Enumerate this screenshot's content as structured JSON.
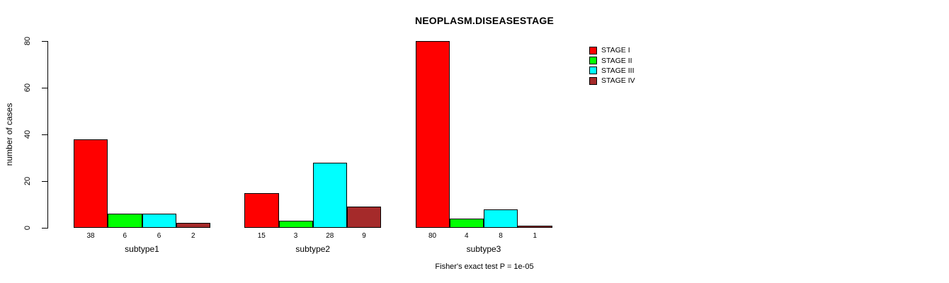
{
  "figure": {
    "background": "#FFFFFF",
    "text_color": "#000000"
  },
  "chart_data": {
    "type": "bar",
    "title": "NEOPLASM.DISEASESTAGE",
    "ylabel": "number of cases",
    "xlabel": "",
    "categories": [
      "subtype1",
      "subtype2",
      "subtype3"
    ],
    "series": [
      {
        "name": "STAGE I",
        "color": "#FF0000",
        "values": [
          38,
          15,
          80
        ]
      },
      {
        "name": "STAGE II",
        "color": "#00FF00",
        "values": [
          6,
          3,
          4
        ]
      },
      {
        "name": "STAGE III",
        "color": "#00FFFF",
        "values": [
          6,
          28,
          8
        ]
      },
      {
        "name": "STAGE IV",
        "color": "#A52A2A",
        "values": [
          2,
          9,
          1
        ]
      }
    ],
    "yticks": [
      0,
      20,
      40,
      60,
      80
    ],
    "ylim": [
      0,
      80
    ],
    "grid": false,
    "legend_position": "right",
    "bar_value_labels": true,
    "bar_border_color": "#000000",
    "annotation": "Fisher's exact test P = 1e-05"
  }
}
